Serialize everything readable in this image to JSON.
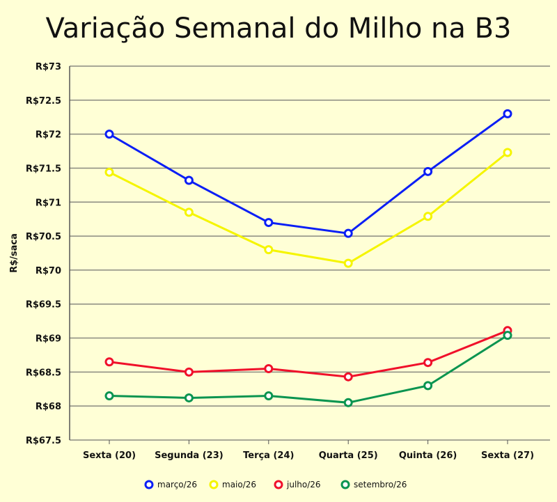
{
  "chart_data": {
    "type": "line",
    "title": "Variação Semanal do Milho na B3",
    "xlabel": "",
    "ylabel": "R$/saca",
    "categories": [
      "Sexta (20)",
      "Segunda (23)",
      "Terça (24)",
      "Quarta (25)",
      "Quinta (26)",
      "Sexta (27)"
    ],
    "ylim": [
      67.5,
      73
    ],
    "yticks": [
      67.5,
      68,
      68.5,
      69,
      69.5,
      70,
      70.5,
      71,
      71.5,
      72,
      72.5,
      73
    ],
    "ytick_labels": [
      "R$67.5",
      "R$68",
      "R$68.5",
      "R$69",
      "R$69.5",
      "R$70",
      "R$70.5",
      "R$71",
      "R$71.5",
      "R$72",
      "R$72.5",
      "R$73"
    ],
    "grid": true,
    "legend_position": "bottom",
    "series": [
      {
        "name": "março/26",
        "color": "#0a1ef5",
        "values": [
          72.0,
          71.32,
          70.7,
          70.54,
          71.45,
          72.3
        ]
      },
      {
        "name": "maio/26",
        "color": "#f5f500",
        "values": [
          71.44,
          70.85,
          70.3,
          70.1,
          70.79,
          71.73
        ]
      },
      {
        "name": "julho/26",
        "color": "#f0102a",
        "values": [
          68.65,
          68.5,
          68.55,
          68.43,
          68.64,
          69.11
        ]
      },
      {
        "name": "setembro/26",
        "color": "#0a9450",
        "values": [
          68.15,
          68.12,
          68.15,
          68.05,
          68.3,
          69.04
        ]
      }
    ]
  }
}
